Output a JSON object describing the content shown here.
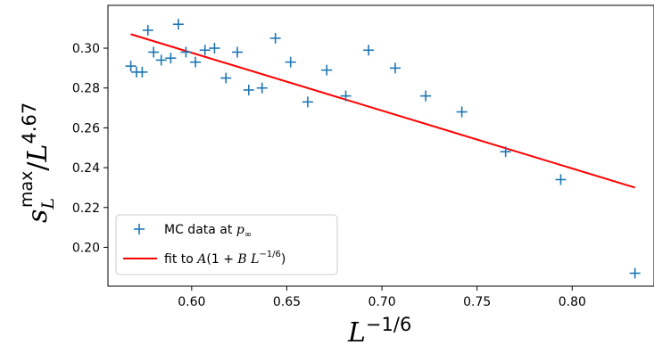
{
  "chart_data": {
    "type": "scatter",
    "xlabel": "L^{-1/6}",
    "ylabel": "s_L^max / L^4.67",
    "xlim": [
      0.556,
      0.843
    ],
    "ylim": [
      0.1805,
      0.3215
    ],
    "xticks": [
      0.6,
      0.65,
      0.7,
      0.75,
      0.8
    ],
    "xtick_labels": [
      "0.60",
      "0.65",
      "0.70",
      "0.75",
      "0.80"
    ],
    "yticks": [
      0.2,
      0.22,
      0.24,
      0.26,
      0.28,
      0.3
    ],
    "ytick_labels": [
      "0.20",
      "0.22",
      "0.24",
      "0.26",
      "0.28",
      "0.30"
    ],
    "grid": false,
    "legend_position": "lower-left",
    "series": [
      {
        "name": "MC data at p∞",
        "kind": "scatter",
        "marker": "+",
        "color": "#1f77b4",
        "points": [
          [
            0.568,
            0.291
          ],
          [
            0.571,
            0.288
          ],
          [
            0.574,
            0.288
          ],
          [
            0.577,
            0.309
          ],
          [
            0.58,
            0.298
          ],
          [
            0.584,
            0.294
          ],
          [
            0.589,
            0.295
          ],
          [
            0.593,
            0.312
          ],
          [
            0.597,
            0.298
          ],
          [
            0.602,
            0.293
          ],
          [
            0.607,
            0.299
          ],
          [
            0.612,
            0.3
          ],
          [
            0.618,
            0.285
          ],
          [
            0.624,
            0.298
          ],
          [
            0.63,
            0.279
          ],
          [
            0.637,
            0.28
          ],
          [
            0.644,
            0.305
          ],
          [
            0.652,
            0.293
          ],
          [
            0.661,
            0.273
          ],
          [
            0.671,
            0.289
          ],
          [
            0.681,
            0.276
          ],
          [
            0.693,
            0.299
          ],
          [
            0.707,
            0.29
          ],
          [
            0.723,
            0.276
          ],
          [
            0.742,
            0.268
          ],
          [
            0.765,
            0.248
          ],
          [
            0.794,
            0.234
          ],
          [
            0.833,
            0.187
          ]
        ]
      },
      {
        "name": "fit to A(1+BL^{-1/6})",
        "kind": "line",
        "color": "#ff0000",
        "points": [
          [
            0.568,
            0.307
          ],
          [
            0.833,
            0.23
          ]
        ]
      }
    ],
    "legend": [
      {
        "label_parts": [
          "MC data at ",
          "p",
          "∞"
        ],
        "marker": "+"
      },
      {
        "label_parts": [
          "fit to ",
          "A",
          "(1 + ",
          "B",
          " ",
          "L",
          "−1/6",
          ")"
        ],
        "marker": "line"
      }
    ],
    "axis_text": {
      "x_main": "L",
      "x_sup": "−1/6",
      "y_main": "s",
      "y_sub": "L",
      "y_sup_max": "max",
      "y_slash": "/",
      "y_L": "L",
      "y_exp": "4.67"
    }
  }
}
